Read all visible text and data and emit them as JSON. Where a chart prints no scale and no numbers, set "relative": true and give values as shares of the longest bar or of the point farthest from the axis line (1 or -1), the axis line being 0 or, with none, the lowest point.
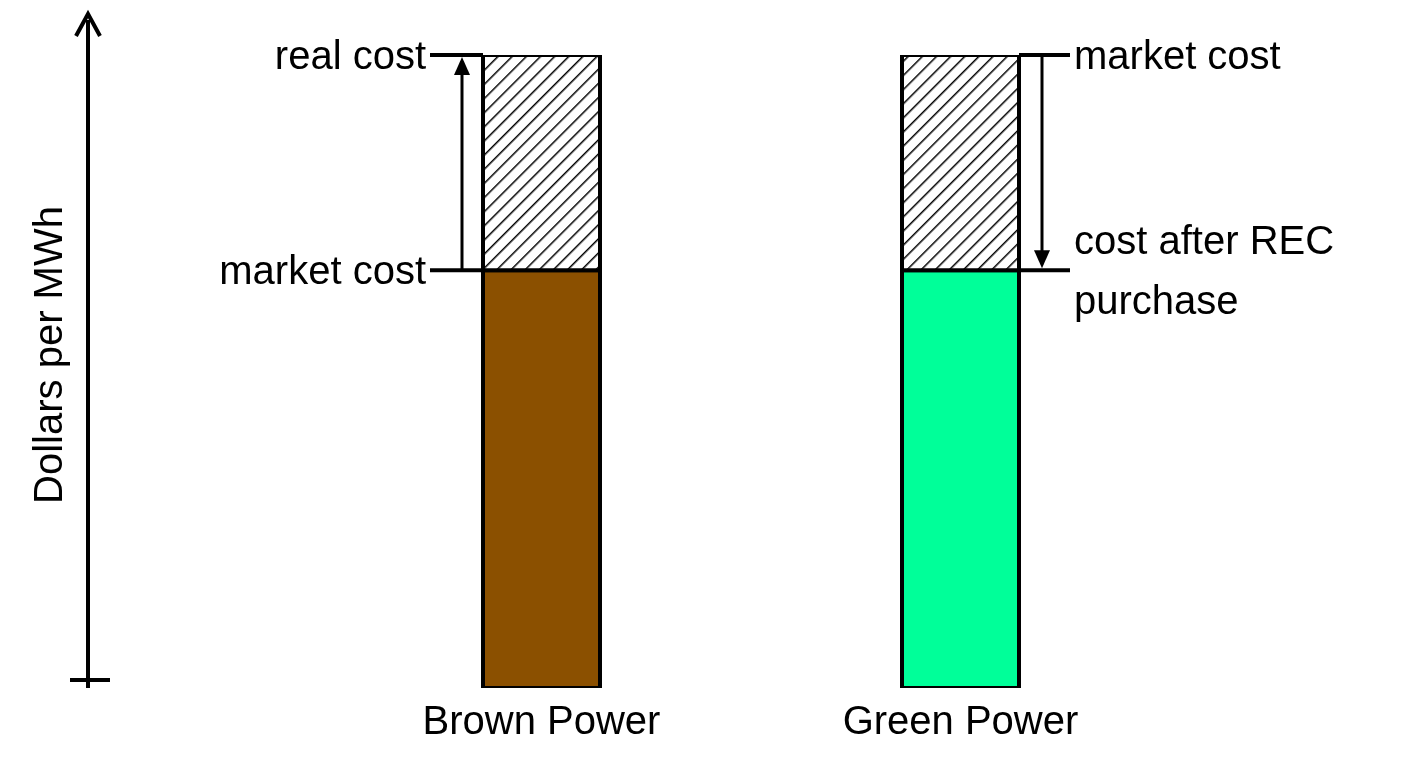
{
  "chart_data": {
    "type": "bar",
    "stacked": true,
    "relative": true,
    "categories": [
      "Brown Power",
      "Green Power"
    ],
    "series": [
      {
        "colors": [
          "#8b5000",
          "#00ff99"
        ],
        "values": [
          0.66,
          0.66
        ]
      },
      {
        "color": "#000000",
        "values": [
          0.34,
          0.34
        ]
      }
    ],
    "annotations": [
      "Dollars per MWh",
      {
        "text": "real cost",
        "x": "Brown Power",
        "y": 1
      },
      {
        "text": "market cost",
        "x": "Brown Power",
        "y": 0.66
      },
      {
        "text": "market cost",
        "x": "Green Power",
        "y": 1
      },
      {
        "text": "cost after REC purchase",
        "x": "Green Power",
        "y": 0.66
      }
    ],
    "legend": false
  }
}
